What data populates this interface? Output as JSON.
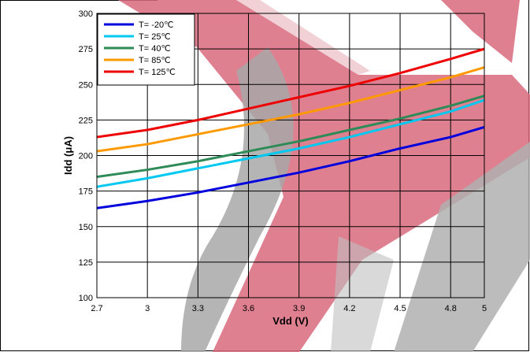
{
  "chart_data": {
    "type": "line",
    "title": "",
    "xlabel": "Vdd (V)",
    "ylabel": "Idd (μA)",
    "xlim": [
      2.7,
      5.0
    ],
    "ylim": [
      100,
      300
    ],
    "x_ticks": [
      "2.7",
      "3",
      "3.3",
      "3.6",
      "3.9",
      "4.2",
      "4.5",
      "4.8",
      "5"
    ],
    "y_ticks": [
      "100",
      "125",
      "150",
      "175",
      "200",
      "225",
      "250",
      "275",
      "300"
    ],
    "grid": true,
    "legend_position": "top-left",
    "series": [
      {
        "name": "T= -20℃",
        "color": "#0000dd",
        "x": [
          2.7,
          3.0,
          3.3,
          3.6,
          3.9,
          4.2,
          4.5,
          4.8,
          5.0
        ],
        "y": [
          163,
          168,
          174,
          181,
          188,
          196,
          205,
          213,
          220
        ]
      },
      {
        "name": "T= 25℃",
        "color": "#00c8f0",
        "x": [
          2.7,
          3.0,
          3.3,
          3.6,
          3.9,
          4.2,
          4.5,
          4.8,
          5.0
        ],
        "y": [
          178,
          184,
          191,
          198,
          205,
          213,
          222,
          231,
          239
        ]
      },
      {
        "name": "T= 40℃",
        "color": "#2e8b57",
        "x": [
          2.7,
          3.0,
          3.3,
          3.6,
          3.9,
          4.2,
          4.5,
          4.8,
          5.0
        ],
        "y": [
          185,
          190,
          196,
          203,
          210,
          218,
          226,
          235,
          242
        ]
      },
      {
        "name": "T= 85℃",
        "color": "#ff9900",
        "x": [
          2.7,
          3.0,
          3.3,
          3.6,
          3.9,
          4.2,
          4.5,
          4.8,
          5.0
        ],
        "y": [
          203,
          208,
          215,
          222,
          229,
          237,
          246,
          255,
          262
        ]
      },
      {
        "name": "T= 125℃",
        "color": "#ee0000",
        "x": [
          2.7,
          3.0,
          3.3,
          3.6,
          3.9,
          4.2,
          4.5,
          4.8,
          5.0
        ],
        "y": [
          213,
          218,
          225,
          233,
          241,
          249,
          258,
          268,
          275
        ]
      }
    ]
  }
}
